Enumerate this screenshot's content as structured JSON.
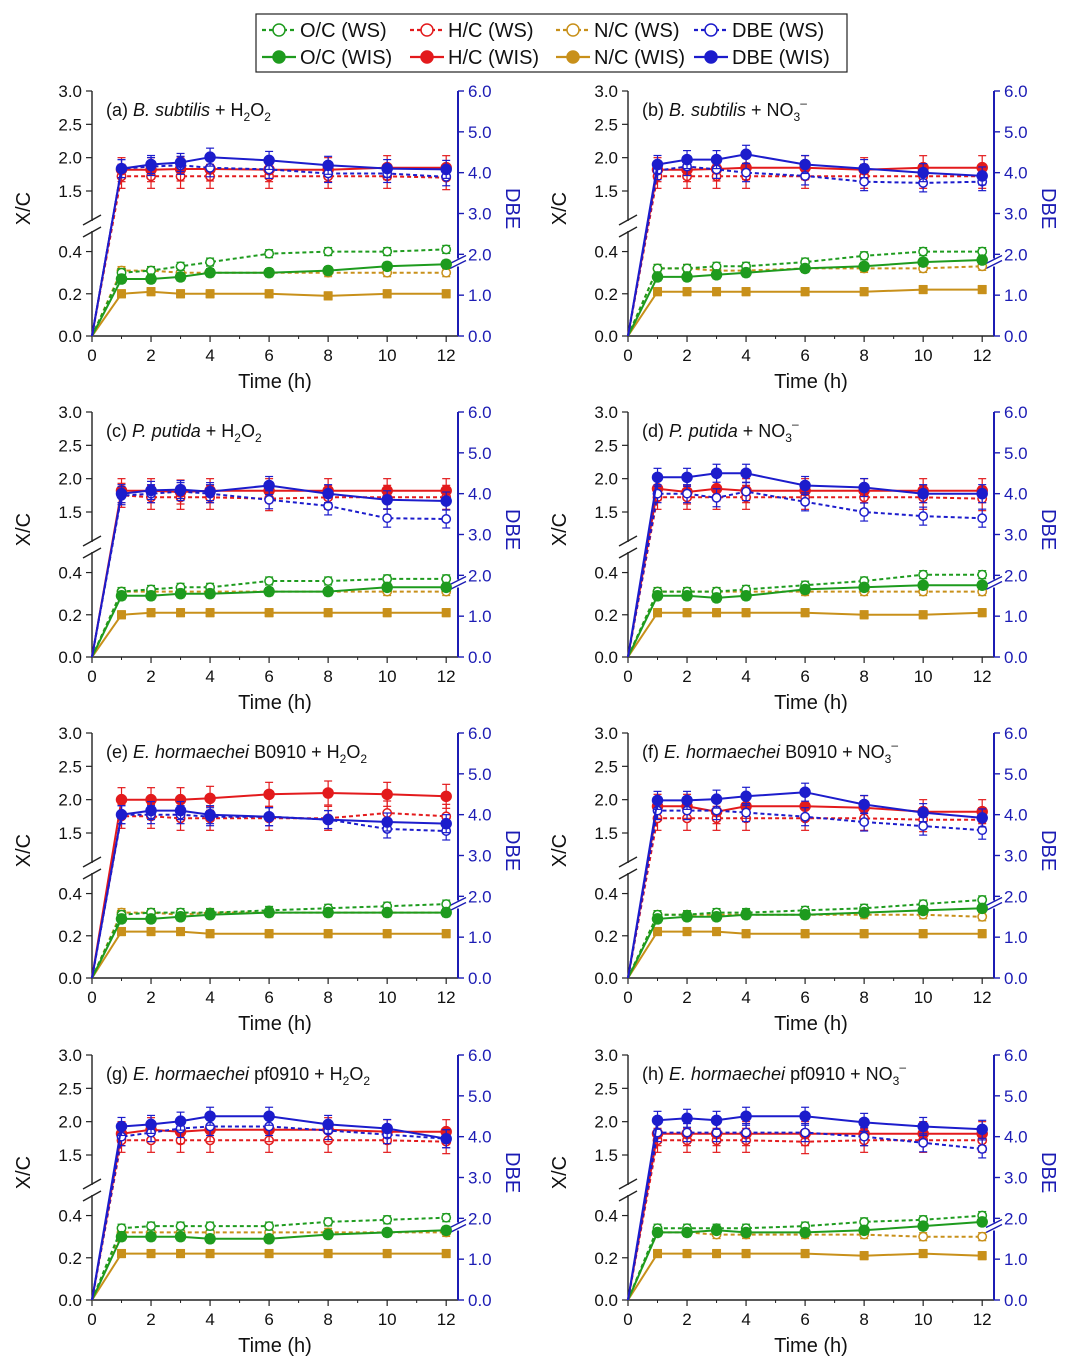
{
  "colors": {
    "oc": "#1e9b1e",
    "hc": "#e31a1c",
    "nc": "#c8901a",
    "dbe": "#1c1ccc",
    "axis": "#222222",
    "dbe_axis": "#1c1cb4"
  },
  "legend": {
    "position": "top-center",
    "ws": [
      "O/C (WS)",
      "H/C (WS)",
      "N/C (WS)",
      "DBE (WS)"
    ],
    "wis": [
      "O/C (WIS)",
      "H/C (WIS)",
      "N/C (WIS)",
      "DBE (WIS)"
    ]
  },
  "chart_data": [
    {
      "type": "line",
      "panel": "a",
      "title": {
        "prefix": "(a) ",
        "species": "B. subtilis",
        "strain": "",
        "oxidant": "H2O2"
      },
      "xlabel": "Time (h)",
      "ylabel": "X/C",
      "y2label": "DBE",
      "x": [
        0,
        1,
        2,
        3,
        4,
        6,
        8,
        10,
        12
      ],
      "xlim": [
        0,
        12.4
      ],
      "xticks": [
        "0",
        "2",
        "4",
        "6",
        "8",
        "10",
        "12"
      ],
      "ylim_lower": [
        0,
        0.45
      ],
      "yticks_lower": [
        "0.0",
        "0.2",
        "0.4"
      ],
      "ylim_upper": [
        1.2,
        3.0
      ],
      "yticks_upper": [
        "1.5",
        "2.0",
        "2.5",
        "3.0"
      ],
      "y2lim": [
        0,
        6
      ],
      "y2ticks": [
        "0.0",
        "1.0",
        "2.0",
        "3.0",
        "4.0",
        "5.0",
        "6.0"
      ],
      "y2_break_at": 1.8,
      "series": {
        "oc_ws": [
          0,
          0.3,
          0.31,
          0.33,
          0.35,
          0.39,
          0.4,
          0.4,
          0.41
        ],
        "oc_wis": [
          0,
          0.27,
          0.27,
          0.28,
          0.3,
          0.3,
          0.31,
          0.33,
          0.34
        ],
        "hc_ws": [
          0,
          1.72,
          1.72,
          1.72,
          1.72,
          1.72,
          1.72,
          1.72,
          1.7
        ],
        "hc_wis": [
          0,
          1.82,
          1.82,
          1.83,
          1.83,
          1.82,
          1.82,
          1.85,
          1.85
        ],
        "nc_ws": [
          0,
          0.31,
          0.31,
          0.3,
          0.3,
          0.3,
          0.3,
          0.3,
          0.3
        ],
        "nc_wis": [
          0,
          0.2,
          0.21,
          0.2,
          0.2,
          0.2,
          0.19,
          0.2,
          0.2
        ],
        "dbe_ws": [
          0,
          4.1,
          4.15,
          4.18,
          4.12,
          4.08,
          3.98,
          3.98,
          3.9
        ],
        "dbe_wis": [
          0,
          4.1,
          4.2,
          4.25,
          4.38,
          4.3,
          4.18,
          4.1,
          4.08
        ]
      }
    },
    {
      "type": "line",
      "panel": "b",
      "title": {
        "prefix": "(b) ",
        "species": "B. subtilis",
        "strain": "",
        "oxidant": "NO3-"
      },
      "xlabel": "Time (h)",
      "ylabel": "X/C",
      "y2label": "DBE",
      "x": [
        0,
        1,
        2,
        3,
        4,
        6,
        8,
        10,
        12
      ],
      "xlim": [
        0,
        12.4
      ],
      "xticks": [
        "0",
        "2",
        "4",
        "6",
        "8",
        "10",
        "12"
      ],
      "ylim_lower": [
        0,
        0.45
      ],
      "yticks_lower": [
        "0.0",
        "0.2",
        "0.4"
      ],
      "ylim_upper": [
        1.2,
        3.0
      ],
      "yticks_upper": [
        "1.5",
        "2.0",
        "2.5",
        "3.0"
      ],
      "y2lim": [
        0,
        6
      ],
      "y2ticks": [
        "0.0",
        "1.0",
        "2.0",
        "3.0",
        "4.0",
        "5.0",
        "6.0"
      ],
      "y2_break_at": 1.8,
      "series": {
        "oc_ws": [
          0,
          0.32,
          0.32,
          0.33,
          0.33,
          0.35,
          0.38,
          0.4,
          0.4
        ],
        "oc_wis": [
          0,
          0.28,
          0.28,
          0.29,
          0.3,
          0.32,
          0.33,
          0.35,
          0.36
        ],
        "hc_ws": [
          0,
          1.72,
          1.72,
          1.72,
          1.72,
          1.72,
          1.72,
          1.72,
          1.72
        ],
        "hc_wis": [
          0,
          1.82,
          1.82,
          1.83,
          1.85,
          1.85,
          1.82,
          1.85,
          1.85
        ],
        "nc_ws": [
          0,
          0.32,
          0.32,
          0.31,
          0.31,
          0.32,
          0.32,
          0.32,
          0.33
        ],
        "nc_wis": [
          0,
          0.21,
          0.21,
          0.21,
          0.21,
          0.21,
          0.21,
          0.22,
          0.22
        ],
        "dbe_ws": [
          0,
          4.05,
          4.15,
          4.08,
          4.0,
          3.92,
          3.78,
          3.75,
          3.78
        ],
        "dbe_wis": [
          0,
          4.2,
          4.32,
          4.32,
          4.45,
          4.2,
          4.1,
          4.0,
          3.92
        ]
      }
    },
    {
      "type": "line",
      "panel": "c",
      "title": {
        "prefix": "(c) ",
        "species": "P. putida",
        "strain": "",
        "oxidant": "H2O2"
      },
      "xlabel": "Time (h)",
      "ylabel": "X/C",
      "y2label": "DBE",
      "x": [
        0,
        1,
        2,
        3,
        4,
        6,
        8,
        10,
        12
      ],
      "xlim": [
        0,
        12.4
      ],
      "xticks": [
        "0",
        "2",
        "4",
        "6",
        "8",
        "10",
        "12"
      ],
      "ylim_lower": [
        0,
        0.45
      ],
      "yticks_lower": [
        "0.0",
        "0.2",
        "0.4"
      ],
      "ylim_upper": [
        1.2,
        3.0
      ],
      "yticks_upper": [
        "1.5",
        "2.0",
        "2.5",
        "3.0"
      ],
      "y2lim": [
        0,
        6
      ],
      "y2ticks": [
        "0.0",
        "1.0",
        "2.0",
        "3.0",
        "4.0",
        "5.0",
        "6.0"
      ],
      "y2_break_at": 1.8,
      "series": {
        "oc_ws": [
          0,
          0.31,
          0.32,
          0.33,
          0.33,
          0.36,
          0.36,
          0.37,
          0.37
        ],
        "oc_wis": [
          0,
          0.29,
          0.29,
          0.3,
          0.3,
          0.31,
          0.31,
          0.33,
          0.33
        ],
        "hc_ws": [
          0,
          1.75,
          1.72,
          1.72,
          1.72,
          1.7,
          1.72,
          1.72,
          1.72
        ],
        "hc_wis": [
          0,
          1.82,
          1.82,
          1.8,
          1.82,
          1.82,
          1.82,
          1.82,
          1.82
        ],
        "nc_ws": [
          0,
          0.31,
          0.31,
          0.31,
          0.31,
          0.31,
          0.31,
          0.31,
          0.31
        ],
        "nc_wis": [
          0,
          0.2,
          0.21,
          0.21,
          0.21,
          0.21,
          0.21,
          0.21,
          0.21
        ],
        "dbe_ws": [
          0,
          3.95,
          4.0,
          4.05,
          4.0,
          3.85,
          3.7,
          3.4,
          3.38
        ],
        "dbe_wis": [
          0,
          4.0,
          4.08,
          4.1,
          4.05,
          4.2,
          4.0,
          3.85,
          3.82
        ]
      }
    },
    {
      "type": "line",
      "panel": "d",
      "title": {
        "prefix": "(d) ",
        "species": "P. putida",
        "strain": "",
        "oxidant": "NO3-"
      },
      "xlabel": "Time (h)",
      "ylabel": "X/C",
      "y2label": "DBE",
      "x": [
        0,
        1,
        2,
        3,
        4,
        6,
        8,
        10,
        12
      ],
      "xlim": [
        0,
        12.4
      ],
      "xticks": [
        "0",
        "2",
        "4",
        "6",
        "8",
        "10",
        "12"
      ],
      "ylim_lower": [
        0,
        0.45
      ],
      "yticks_lower": [
        "0.0",
        "0.2",
        "0.4"
      ],
      "ylim_upper": [
        1.2,
        3.0
      ],
      "yticks_upper": [
        "1.5",
        "2.0",
        "2.5",
        "3.0"
      ],
      "y2lim": [
        0,
        6
      ],
      "y2ticks": [
        "0.0",
        "1.0",
        "2.0",
        "3.0",
        "4.0",
        "5.0",
        "6.0"
      ],
      "y2_break_at": 1.8,
      "series": {
        "oc_ws": [
          0,
          0.31,
          0.31,
          0.31,
          0.32,
          0.34,
          0.36,
          0.39,
          0.39
        ],
        "oc_wis": [
          0,
          0.29,
          0.29,
          0.28,
          0.29,
          0.32,
          0.33,
          0.34,
          0.34
        ],
        "hc_ws": [
          0,
          1.72,
          1.72,
          1.72,
          1.72,
          1.72,
          1.72,
          1.72,
          1.7
        ],
        "hc_wis": [
          0,
          1.85,
          1.8,
          1.85,
          1.82,
          1.82,
          1.82,
          1.82,
          1.82
        ],
        "nc_ws": [
          0,
          0.31,
          0.31,
          0.31,
          0.31,
          0.31,
          0.31,
          0.31,
          0.31
        ],
        "nc_wis": [
          0,
          0.21,
          0.21,
          0.21,
          0.21,
          0.21,
          0.2,
          0.2,
          0.21
        ],
        "dbe_ws": [
          0,
          4.0,
          4.0,
          3.9,
          4.05,
          3.8,
          3.55,
          3.45,
          3.4
        ],
        "dbe_wis": [
          0,
          4.4,
          4.4,
          4.5,
          4.5,
          4.2,
          4.15,
          4.0,
          4.0
        ]
      }
    },
    {
      "type": "line",
      "panel": "e",
      "title": {
        "prefix": "(e) ",
        "species": "E. hormaechei",
        "strain": " B0910",
        "oxidant": "H2O2"
      },
      "xlabel": "Time (h)",
      "ylabel": "X/C",
      "y2label": "DBE",
      "x": [
        0,
        1,
        2,
        3,
        4,
        6,
        8,
        10,
        12
      ],
      "xlim": [
        0,
        12.4
      ],
      "xticks": [
        "0",
        "2",
        "4",
        "6",
        "8",
        "10",
        "12"
      ],
      "ylim_lower": [
        0,
        0.45
      ],
      "yticks_lower": [
        "0.0",
        "0.2",
        "0.4"
      ],
      "ylim_upper": [
        1.2,
        3.0
      ],
      "yticks_upper": [
        "1.5",
        "2.0",
        "2.5",
        "3.0"
      ],
      "y2lim": [
        0,
        6
      ],
      "y2ticks": [
        "0.0",
        "1.0",
        "2.0",
        "3.0",
        "4.0",
        "5.0",
        "6.0"
      ],
      "y2_break_at": 1.8,
      "series": {
        "oc_ws": [
          0,
          0.3,
          0.31,
          0.31,
          0.31,
          0.32,
          0.33,
          0.34,
          0.35
        ],
        "oc_wis": [
          0,
          0.28,
          0.28,
          0.29,
          0.3,
          0.31,
          0.31,
          0.31,
          0.31
        ],
        "hc_ws": [
          0,
          1.75,
          1.75,
          1.72,
          1.72,
          1.72,
          1.72,
          1.8,
          1.75
        ],
        "hc_wis": [
          0,
          2.0,
          2.0,
          2.0,
          2.02,
          2.08,
          2.1,
          2.08,
          2.05
        ],
        "nc_ws": [
          0,
          0.31,
          0.31,
          0.3,
          0.31,
          0.31,
          0.31,
          0.31,
          0.31
        ],
        "nc_wis": [
          0,
          0.22,
          0.22,
          0.22,
          0.21,
          0.21,
          0.21,
          0.21,
          0.21
        ],
        "dbe_ws": [
          0,
          4.0,
          4.0,
          4.0,
          3.95,
          3.95,
          3.88,
          3.65,
          3.6
        ],
        "dbe_wis": [
          0,
          4.0,
          4.1,
          4.1,
          4.0,
          3.95,
          3.88,
          3.82,
          3.78
        ]
      }
    },
    {
      "type": "line",
      "panel": "f",
      "title": {
        "prefix": "(f) ",
        "species": "E. hormaechei",
        "strain": " B0910",
        "oxidant": "NO3-"
      },
      "xlabel": "Time (h)",
      "ylabel": "X/C",
      "y2label": "DBE",
      "x": [
        0,
        1,
        2,
        3,
        4,
        6,
        8,
        10,
        12
      ],
      "xlim": [
        0,
        12.4
      ],
      "xticks": [
        "0",
        "2",
        "4",
        "6",
        "8",
        "10",
        "12"
      ],
      "ylim_lower": [
        0,
        0.45
      ],
      "yticks_lower": [
        "0.0",
        "0.2",
        "0.4"
      ],
      "ylim_upper": [
        1.2,
        3.0
      ],
      "yticks_upper": [
        "1.5",
        "2.0",
        "2.5",
        "3.0"
      ],
      "y2lim": [
        0,
        6
      ],
      "y2ticks": [
        "0.0",
        "1.0",
        "2.0",
        "3.0",
        "4.0",
        "5.0",
        "6.0"
      ],
      "y2_break_at": 1.8,
      "series": {
        "oc_ws": [
          0,
          0.3,
          0.3,
          0.31,
          0.31,
          0.32,
          0.33,
          0.35,
          0.37
        ],
        "oc_wis": [
          0,
          0.28,
          0.29,
          0.29,
          0.3,
          0.3,
          0.31,
          0.32,
          0.33
        ],
        "hc_ws": [
          0,
          1.72,
          1.72,
          1.72,
          1.72,
          1.72,
          1.72,
          1.7,
          1.7
        ],
        "hc_wis": [
          0,
          1.9,
          1.9,
          1.82,
          1.9,
          1.9,
          1.88,
          1.82,
          1.82
        ],
        "nc_ws": [
          0,
          0.3,
          0.3,
          0.3,
          0.3,
          0.3,
          0.3,
          0.3,
          0.29
        ],
        "nc_wis": [
          0,
          0.22,
          0.22,
          0.22,
          0.21,
          0.21,
          0.21,
          0.21,
          0.21
        ],
        "dbe_ws": [
          0,
          4.1,
          4.1,
          4.1,
          4.05,
          3.95,
          3.82,
          3.72,
          3.62
        ],
        "dbe_wis": [
          0,
          4.35,
          4.35,
          4.38,
          4.45,
          4.55,
          4.25,
          4.05,
          3.92
        ]
      }
    },
    {
      "type": "line",
      "panel": "g",
      "title": {
        "prefix": "(g) ",
        "species": "E. hormaechei",
        "strain": " pf0910",
        "oxidant": "H2O2"
      },
      "xlabel": "Time (h)",
      "ylabel": "X/C",
      "y2label": "DBE",
      "x": [
        0,
        1,
        2,
        3,
        4,
        6,
        8,
        10,
        12
      ],
      "xlim": [
        0,
        12.4
      ],
      "xticks": [
        "0",
        "2",
        "4",
        "6",
        "8",
        "10",
        "12"
      ],
      "ylim_lower": [
        0,
        0.45
      ],
      "yticks_lower": [
        "0.0",
        "0.2",
        "0.4"
      ],
      "ylim_upper": [
        1.2,
        3.0
      ],
      "yticks_upper": [
        "1.5",
        "2.0",
        "2.5",
        "3.0"
      ],
      "y2lim": [
        0,
        6
      ],
      "y2ticks": [
        "0.0",
        "1.0",
        "2.0",
        "3.0",
        "4.0",
        "5.0",
        "6.0"
      ],
      "y2_break_at": 1.8,
      "series": {
        "oc_ws": [
          0,
          0.34,
          0.35,
          0.35,
          0.35,
          0.35,
          0.37,
          0.38,
          0.39
        ],
        "oc_wis": [
          0,
          0.3,
          0.3,
          0.3,
          0.29,
          0.29,
          0.31,
          0.32,
          0.33
        ],
        "hc_ws": [
          0,
          1.72,
          1.72,
          1.72,
          1.72,
          1.72,
          1.72,
          1.72,
          1.7
        ],
        "hc_wis": [
          0,
          1.82,
          1.88,
          1.85,
          1.88,
          1.88,
          1.88,
          1.85,
          1.85
        ],
        "nc_ws": [
          0,
          0.32,
          0.32,
          0.32,
          0.32,
          0.32,
          0.32,
          0.32,
          0.32
        ],
        "nc_wis": [
          0,
          0.22,
          0.22,
          0.22,
          0.22,
          0.22,
          0.22,
          0.22,
          0.22
        ],
        "dbe_ws": [
          0,
          4.0,
          4.1,
          4.2,
          4.25,
          4.25,
          4.15,
          4.05,
          3.95
        ],
        "dbe_wis": [
          0,
          4.25,
          4.3,
          4.38,
          4.5,
          4.5,
          4.3,
          4.2,
          3.95
        ]
      }
    },
    {
      "type": "line",
      "panel": "h",
      "title": {
        "prefix": "(h) ",
        "species": "E. hormaechei",
        "strain": " pf0910",
        "oxidant": "NO3-"
      },
      "xlabel": "Time (h)",
      "ylabel": "X/C",
      "y2label": "DBE",
      "x": [
        0,
        1,
        2,
        3,
        4,
        6,
        8,
        10,
        12
      ],
      "xlim": [
        0,
        12.4
      ],
      "xticks": [
        "0",
        "2",
        "4",
        "6",
        "8",
        "10",
        "12"
      ],
      "ylim_lower": [
        0,
        0.45
      ],
      "yticks_lower": [
        "0.0",
        "0.2",
        "0.4"
      ],
      "ylim_upper": [
        1.2,
        3.0
      ],
      "yticks_upper": [
        "1.5",
        "2.0",
        "2.5",
        "3.0"
      ],
      "y2lim": [
        0,
        6
      ],
      "y2ticks": [
        "0.0",
        "1.0",
        "2.0",
        "3.0",
        "4.0",
        "5.0",
        "6.0"
      ],
      "y2_break_at": 1.8,
      "series": {
        "oc_ws": [
          0,
          0.34,
          0.34,
          0.34,
          0.34,
          0.35,
          0.37,
          0.38,
          0.4
        ],
        "oc_wis": [
          0,
          0.32,
          0.32,
          0.33,
          0.32,
          0.32,
          0.33,
          0.35,
          0.37
        ],
        "hc_ws": [
          0,
          1.72,
          1.72,
          1.72,
          1.72,
          1.7,
          1.72,
          1.72,
          1.72
        ],
        "hc_wis": [
          0,
          1.82,
          1.82,
          1.82,
          1.82,
          1.82,
          1.82,
          1.82,
          1.82
        ],
        "nc_ws": [
          0,
          0.32,
          0.32,
          0.31,
          0.31,
          0.31,
          0.31,
          0.3,
          0.3
        ],
        "nc_wis": [
          0,
          0.22,
          0.22,
          0.22,
          0.22,
          0.22,
          0.21,
          0.22,
          0.21
        ],
        "dbe_ws": [
          0,
          4.1,
          4.1,
          4.1,
          4.1,
          4.1,
          4.0,
          3.85,
          3.7
        ],
        "dbe_wis": [
          0,
          4.4,
          4.45,
          4.4,
          4.5,
          4.5,
          4.35,
          4.25,
          4.18
        ]
      }
    }
  ]
}
